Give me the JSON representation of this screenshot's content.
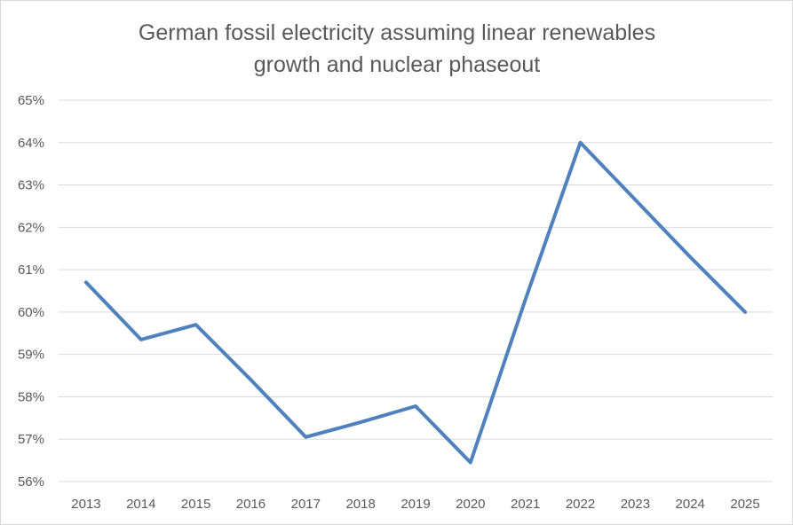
{
  "chart_data": {
    "type": "line",
    "title_lines": [
      "German fossil electricity assuming linear renewables",
      "growth and nuclear phaseout"
    ],
    "x": [
      "2013",
      "2014",
      "2015",
      "2016",
      "2017",
      "2018",
      "2019",
      "2020",
      "2021",
      "2022",
      "2023",
      "2024",
      "2025"
    ],
    "series": [
      {
        "values": [
          60.7,
          59.35,
          59.7,
          58.4,
          57.05,
          57.4,
          57.78,
          56.45,
          60.3,
          64.0,
          62.65,
          61.3,
          60.0
        ]
      }
    ],
    "y_ticks": [
      "56%",
      "57%",
      "58%",
      "59%",
      "60%",
      "61%",
      "62%",
      "63%",
      "64%",
      "65%"
    ],
    "ylim": [
      56,
      65
    ],
    "grid": true,
    "legend": "none",
    "line_color": "#4f81bd",
    "grid_color": "#d9d9d9",
    "text_color": "#595959"
  }
}
